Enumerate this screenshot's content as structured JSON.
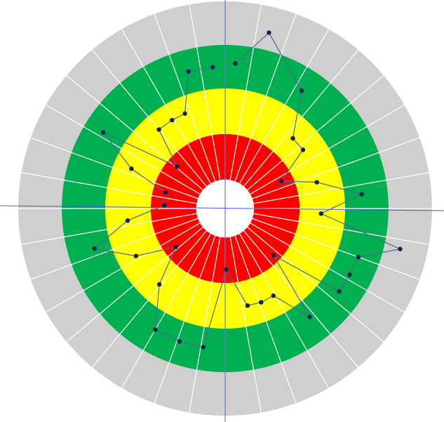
{
  "chart_data": {
    "type": "polar-line",
    "x": [
      4,
      14,
      33,
      44,
      53,
      64,
      74,
      84,
      93,
      103,
      110,
      118,
      126,
      134,
      142,
      151,
      159,
      167,
      179,
      189,
      199,
      210,
      221,
      232,
      242,
      253,
      263,
      273,
      285,
      293,
      302,
      311,
      320,
      329,
      337,
      345,
      355
    ],
    "values": [
      70.2,
      87.5,
      67.8,
      47.1,
      47.1,
      30.2,
      46.1,
      66.4,
      46.4,
      86.8,
      68.5,
      68.1,
      68.1,
      32.5,
      66.4,
      48.1,
      48.5,
      48.1,
      29.5,
      67.8,
      67.8,
      67.5,
      48.5,
      30.2,
      48.8,
      66.1,
      47.5,
      29.5,
      29.8,
      49.2,
      69.5,
      30.8,
      49.8,
      49.8,
      49.8,
      68.5,
      68.5
    ],
    "xlim": [
      0,
      360
    ],
    "ylim": [
      0,
      100
    ],
    "bands": [
      {
        "color": "#ff0000",
        "from": 14,
        "to": 36
      },
      {
        "color": "#ffff00",
        "from": 36,
        "to": 58
      },
      {
        "color": "#00b050",
        "from": 58,
        "to": 79
      },
      {
        "color": "#d0cecf",
        "from": 79,
        "to": 100
      }
    ],
    "sectors": 36,
    "marker_color": "#0d2350",
    "line_color": "#4a6b8a"
  }
}
